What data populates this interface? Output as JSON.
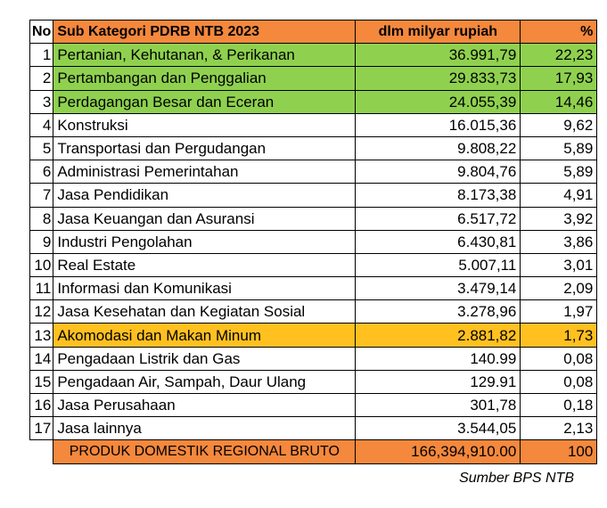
{
  "header": {
    "no": "No",
    "category": "Sub Kategori PDRB NTB 2023",
    "value": "dlm milyar rupiah",
    "percent": "%"
  },
  "rows": [
    {
      "no": "1",
      "name": "Pertanian, Kehutanan, & Perikanan",
      "value": "36.991,79",
      "percent": "22,23",
      "highlight": "green"
    },
    {
      "no": "2",
      "name": "Pertambangan dan Penggalian",
      "value": "29.833,73",
      "percent": "17,93",
      "highlight": "green"
    },
    {
      "no": "3",
      "name": "Perdagangan Besar dan Eceran",
      "value": "24.055,39",
      "percent": "14,46",
      "highlight": "green"
    },
    {
      "no": "4",
      "name": "Konstruksi",
      "value": "16.015,36",
      "percent": "9,62",
      "highlight": ""
    },
    {
      "no": "5",
      "name": "Transportasi dan Pergudangan",
      "value": "9.808,22",
      "percent": "5,89",
      "highlight": ""
    },
    {
      "no": "6",
      "name": "Administrasi Pemerintahan",
      "value": "9.804,76",
      "percent": "5,89",
      "highlight": ""
    },
    {
      "no": "7",
      "name": "Jasa Pendidikan",
      "value": "8.173,38",
      "percent": "4,91",
      "highlight": ""
    },
    {
      "no": "8",
      "name": "Jasa Keuangan dan Asuransi",
      "value": "6.517,72",
      "percent": "3,92",
      "highlight": ""
    },
    {
      "no": "9",
      "name": "Industri Pengolahan",
      "value": "6.430,81",
      "percent": "3,86",
      "highlight": ""
    },
    {
      "no": "10",
      "name": "Real Estate",
      "value": "5.007,11",
      "percent": "3,01",
      "highlight": ""
    },
    {
      "no": "11",
      "name": "Informasi dan Komunikasi",
      "value": "3.479,14",
      "percent": "2,09",
      "highlight": ""
    },
    {
      "no": "12",
      "name": "Jasa Kesehatan dan Kegiatan Sosial",
      "value": "3.278,96",
      "percent": "1,97",
      "highlight": ""
    },
    {
      "no": "13",
      "name": "Akomodasi dan Makan Minum",
      "value": "2.881,82",
      "percent": "1,73",
      "highlight": "yellow"
    },
    {
      "no": "14",
      "name": "Pengadaan Listrik dan Gas",
      "value": "140.99",
      "percent": "0,08",
      "highlight": ""
    },
    {
      "no": "15",
      "name": "Pengadaan Air, Sampah, Daur Ulang",
      "value": "129.91",
      "percent": "0,08",
      "highlight": ""
    },
    {
      "no": "16",
      "name": "Jasa Perusahaan",
      "value": "301,78",
      "percent": "0,18",
      "highlight": ""
    },
    {
      "no": "17",
      "name": "Jasa lainnya",
      "value": "3.544,05",
      "percent": "2,13",
      "highlight": ""
    }
  ],
  "total": {
    "label": "PRODUK DOMESTIK REGIONAL BRUTO",
    "value": "166,394,910.00",
    "percent": "100"
  },
  "source": "Sumber BPS NTB",
  "colors": {
    "orange": "#f4883d",
    "green": "#8fd14f",
    "yellow": "#ffc020"
  }
}
